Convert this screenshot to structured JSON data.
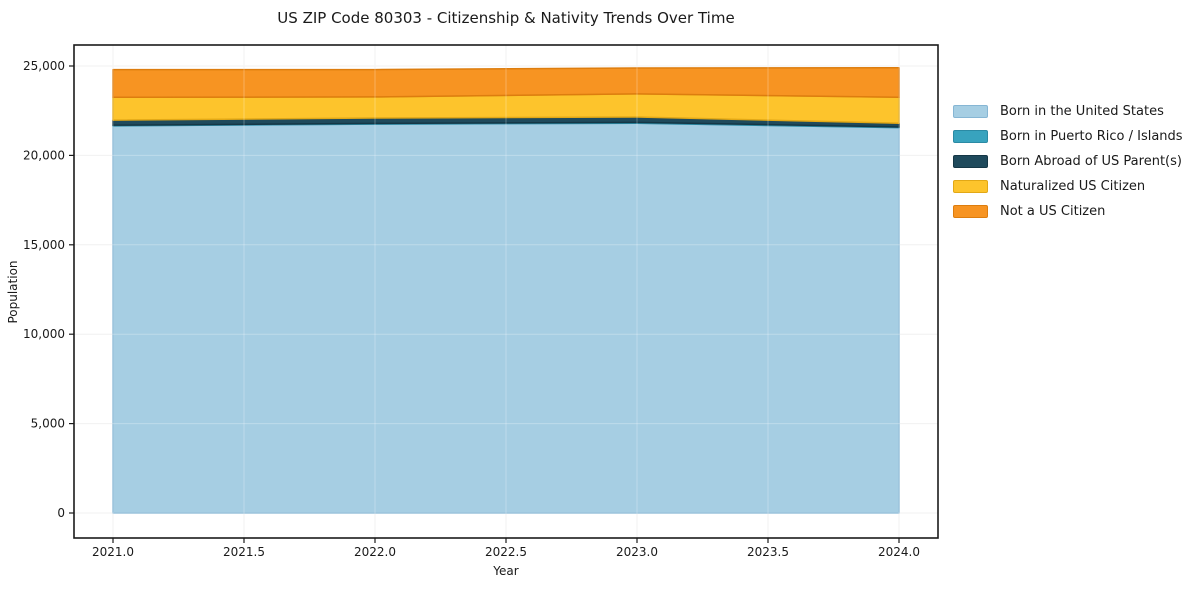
{
  "chart_data": {
    "type": "area",
    "stacked": true,
    "title": "US ZIP Code 80303 - Citizenship & Nativity Trends Over Time",
    "xlabel": "Year",
    "ylabel": "Population",
    "x": [
      2021,
      2022,
      2023,
      2024
    ],
    "series": [
      {
        "name": "Born in the United States",
        "color": "#a6cee3",
        "edge": "#86b6d4",
        "values": [
          21650,
          21750,
          21800,
          21550
        ]
      },
      {
        "name": "Born in Puerto Rico / Islands",
        "color": "#38a3be",
        "edge": "#2b8aa4",
        "values": [
          40,
          40,
          50,
          40
        ]
      },
      {
        "name": "Born Abroad of US Parent(s)",
        "color": "#1f4a5c",
        "edge": "#153746",
        "values": [
          280,
          300,
          300,
          210
        ]
      },
      {
        "name": "Naturalized US Citizen",
        "color": "#fdc42c",
        "edge": "#e2a816",
        "values": [
          1280,
          1180,
          1290,
          1450
        ]
      },
      {
        "name": "Not a US Citizen",
        "color": "#f79422",
        "edge": "#dd7d0e",
        "values": [
          1550,
          1530,
          1450,
          1650
        ]
      }
    ],
    "totals": [
      24800,
      24800,
      24890,
      24900
    ],
    "xticks": {
      "values": [
        2021.0,
        2021.5,
        2022.0,
        2022.5,
        2023.0,
        2023.5,
        2024.0
      ],
      "labels": [
        "2021.0",
        "2021.5",
        "2022.0",
        "2022.5",
        "2023.0",
        "2023.5",
        "2024.0"
      ]
    },
    "yticks": {
      "values": [
        0,
        5000,
        10000,
        15000,
        20000,
        25000
      ],
      "labels": [
        "0",
        "5,000",
        "10,000",
        "15,000",
        "20,000",
        "25,000"
      ]
    },
    "xlim": [
      2020.85,
      2024.15
    ],
    "ylim": [
      -1400,
      26200
    ],
    "grid": true,
    "legend_position": "right"
  },
  "colors": {
    "background": "#ffffff",
    "frame": "#1a1a1a",
    "grid": "#ededed",
    "grid_overlay": "rgba(255,255,255,0.28)",
    "text": "#1a1a1a"
  }
}
